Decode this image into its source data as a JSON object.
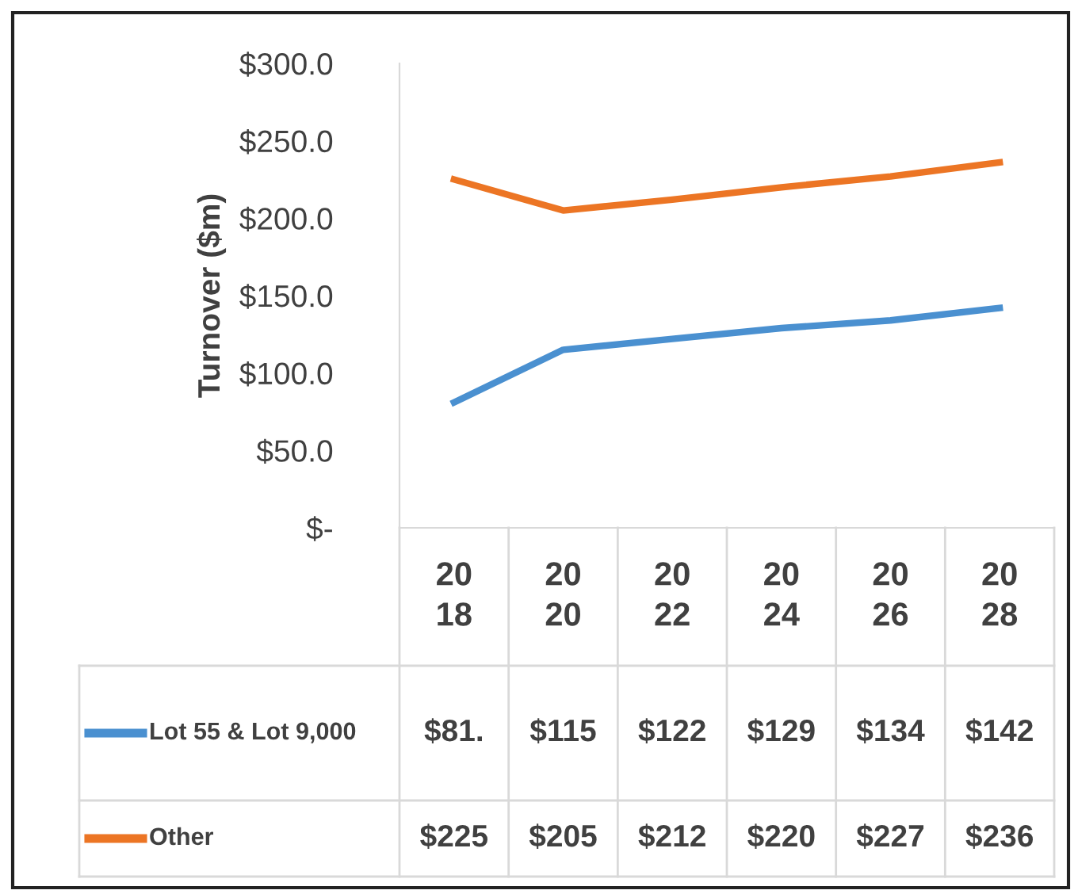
{
  "chart_data": {
    "type": "line",
    "ylabel": "Turnover ($m)",
    "categories": [
      "2018",
      "2020",
      "2022",
      "2024",
      "2026",
      "2028"
    ],
    "series": [
      {
        "name": "Lot 55 & Lot 9,000",
        "color": "#4a90d0",
        "values": [
          81,
          115,
          122,
          129,
          134,
          142
        ],
        "value_labels": [
          "$81.",
          "$115",
          "$122",
          "$129",
          "$134",
          "$142"
        ]
      },
      {
        "name": "Other",
        "color": "#ec7524",
        "values": [
          225,
          205,
          212,
          220,
          227,
          236
        ],
        "value_labels": [
          "$225",
          "$205",
          "$212",
          "$220",
          "$227",
          "$236"
        ]
      }
    ],
    "ylim": [
      0,
      300
    ],
    "yticks": [
      {
        "value": 0,
        "label": "$-"
      },
      {
        "value": 50,
        "label": "$50.0"
      },
      {
        "value": 100,
        "label": "$100.0"
      },
      {
        "value": 150,
        "label": "$150.0"
      },
      {
        "value": 200,
        "label": "$200.0"
      },
      {
        "value": 250,
        "label": "$250.0"
      },
      {
        "value": 300,
        "label": "$300.0"
      }
    ],
    "grid": false,
    "legend": "bottom",
    "marker": "none",
    "line_style": "solid"
  }
}
